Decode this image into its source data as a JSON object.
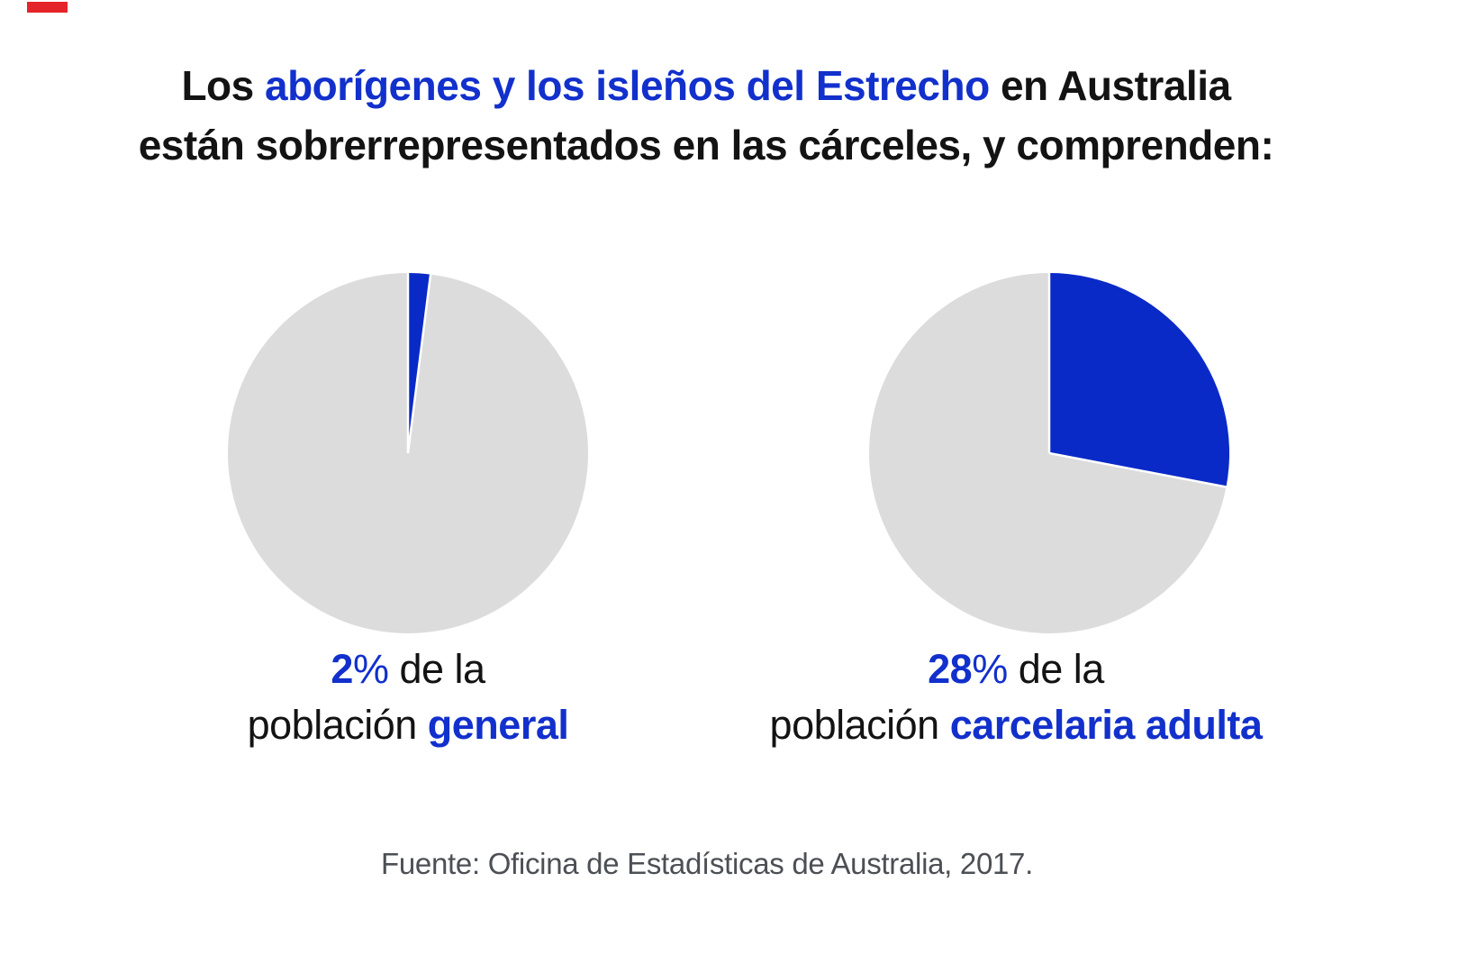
{
  "colors": {
    "page_background": "#ffffff",
    "ink_black": "#131313",
    "accent_blue_text": "#1230cc",
    "accent_blue_pie": "#0a2ac8",
    "pie_gray": "#dcdcdc",
    "source_gray": "#4c4f54",
    "corner_red": "#e5242a"
  },
  "title": {
    "part1": "Los ",
    "highlight": "aborígenes y los isleños del Estrecho",
    "part3": " en Australia",
    "line2": "están sobrerrepresentados en las cárceles, y comprenden:"
  },
  "left_caption": {
    "value": "2",
    "percent_sign": "%",
    "rest_line1": " de la",
    "line2_normal": "población ",
    "line2_highlight": "general"
  },
  "right_caption": {
    "value": "28",
    "percent_sign": "%",
    "rest_line1": " de la",
    "line2_normal": "población ",
    "line2_highlight": "carcelaria adulta"
  },
  "source": {
    "text": "Fuente: Oficina de Estadísticas de Australia, 2017."
  },
  "chart_data": [
    {
      "type": "pie",
      "caption": "2% de la población general",
      "slices": [
        {
          "name": "aborigenes-e-islenos",
          "value": 2
        },
        {
          "name": "resto",
          "value": 98
        }
      ],
      "values": [
        2,
        98
      ],
      "colors": [
        "#0a2ac8",
        "#dcdcdc"
      ],
      "start_angle_deg": 0,
      "direction": "clockwise",
      "divider_color": "#ffffff"
    },
    {
      "type": "pie",
      "caption": "28% de la población carcelaria adulta",
      "slices": [
        {
          "name": "aborigenes-e-islenos",
          "value": 28
        },
        {
          "name": "resto",
          "value": 72
        }
      ],
      "values": [
        28,
        72
      ],
      "colors": [
        "#0a2ac8",
        "#dcdcdc"
      ],
      "start_angle_deg": 0,
      "direction": "clockwise",
      "divider_color": "#ffffff"
    }
  ]
}
